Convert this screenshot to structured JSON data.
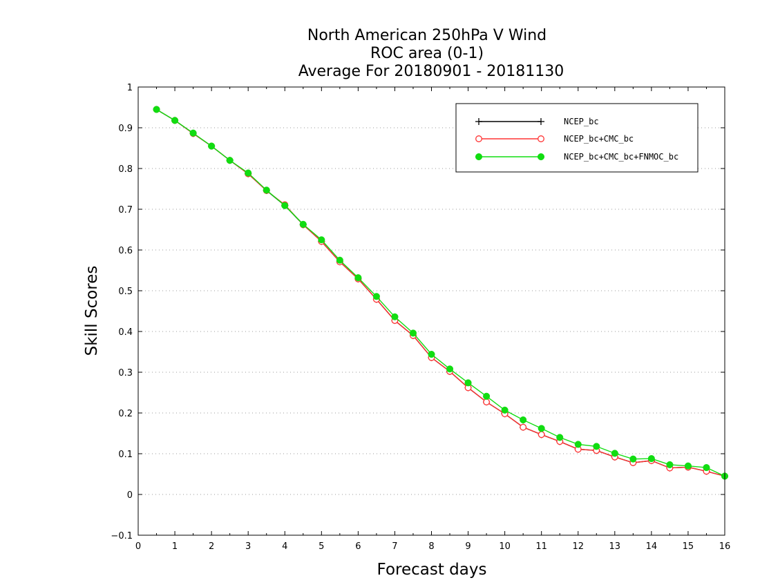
{
  "chart_data": {
    "type": "line",
    "title": [
      "North American 250hPa V Wind",
      "ROC area (0-1)",
      "Average For 20180901 - 20181130"
    ],
    "xlabel": "Forecast days",
    "ylabel": "Skill Scores",
    "xlim": [
      0,
      16
    ],
    "ylim": [
      -0.1,
      1
    ],
    "xticks": [
      "0",
      "1",
      "2",
      "3",
      "4",
      "5",
      "6",
      "7",
      "8",
      "9",
      "10",
      "11",
      "12",
      "13",
      "14",
      "15",
      "16"
    ],
    "yticks": [
      "−0.1",
      "0",
      "0.1",
      "0.2",
      "0.3",
      "0.4",
      "0.5",
      "0.6",
      "0.7",
      "0.8",
      "0.9",
      "1"
    ],
    "grid": true,
    "legend_position": "top-right",
    "x": [
      0.5,
      1,
      1.5,
      2,
      2.5,
      3,
      3.5,
      4,
      4.5,
      5,
      5.5,
      6,
      6.5,
      7,
      7.5,
      8,
      8.5,
      9,
      9.5,
      10,
      10.5,
      11,
      11.5,
      12,
      12.5,
      13,
      13.5,
      14,
      14.5,
      15,
      15.5,
      16
    ],
    "series": [
      {
        "name": "NCEP_bc",
        "color": "#000000",
        "marker": "plus",
        "values": [
          0.945,
          0.918,
          0.886,
          0.855,
          0.82,
          0.787,
          0.746,
          0.709,
          0.662,
          0.621,
          0.571,
          0.529,
          0.479,
          0.427,
          0.39,
          0.336,
          0.302,
          0.262,
          0.227,
          0.198,
          0.165,
          0.147,
          0.13,
          0.111,
          0.108,
          0.092,
          0.078,
          0.083,
          0.065,
          0.067,
          0.057,
          0.045
        ]
      },
      {
        "name": "NCEP_bc+CMC_bc",
        "color": "#ff3333",
        "marker": "open-circle",
        "values": [
          0.945,
          0.918,
          0.886,
          0.855,
          0.82,
          0.787,
          0.746,
          0.711,
          0.662,
          0.621,
          0.571,
          0.529,
          0.479,
          0.427,
          0.39,
          0.336,
          0.302,
          0.262,
          0.227,
          0.198,
          0.165,
          0.147,
          0.13,
          0.111,
          0.108,
          0.092,
          0.078,
          0.083,
          0.065,
          0.067,
          0.057,
          0.045
        ]
      },
      {
        "name": "NCEP_bc+CMC_bc+FNMOC_bc",
        "color": "#11dd11",
        "marker": "filled-circle",
        "values": [
          0.945,
          0.918,
          0.887,
          0.855,
          0.82,
          0.789,
          0.747,
          0.709,
          0.663,
          0.625,
          0.575,
          0.532,
          0.486,
          0.436,
          0.396,
          0.344,
          0.308,
          0.274,
          0.241,
          0.207,
          0.183,
          0.162,
          0.14,
          0.123,
          0.118,
          0.101,
          0.087,
          0.088,
          0.073,
          0.07,
          0.066,
          0.045
        ]
      }
    ]
  }
}
